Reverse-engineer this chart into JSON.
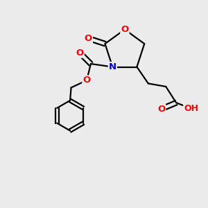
{
  "background_color": "#ebebeb",
  "atom_colors": {
    "O": "#ff0000",
    "N": "#0000cc",
    "C": "#000000",
    "H": "#4a8e8e"
  },
  "figsize": [
    3.0,
    3.0
  ],
  "dpi": 100,
  "lw": 1.6,
  "fontsize": 9.5
}
